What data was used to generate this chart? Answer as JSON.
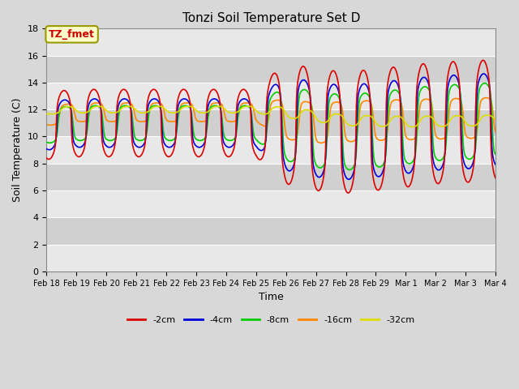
{
  "title": "Tonzi Soil Temperature Set D",
  "xlabel": "Time",
  "ylabel": "Soil Temperature (C)",
  "ylim": [
    0,
    18
  ],
  "yticks": [
    0,
    2,
    4,
    6,
    8,
    10,
    12,
    14,
    16,
    18
  ],
  "annotation_text": "TZ_fmet",
  "annotation_color": "#cc0000",
  "annotation_bg": "#ffffcc",
  "annotation_border": "#999900",
  "series_colors": {
    "-2cm": "#dd0000",
    "-4cm": "#0000dd",
    "-8cm": "#00cc00",
    "-16cm": "#ff8800",
    "-32cm": "#dddd00"
  },
  "series_linewidth": 1.2,
  "bg_color": "#d8d8d8",
  "plot_bg_light": "#e8e8e8",
  "plot_bg_dark": "#d0d0d0",
  "grid_color": "#ffffff",
  "tick_labels": [
    "Feb 18",
    "Feb 19",
    "Feb 20",
    "Feb 21",
    "Feb 22",
    "Feb 23",
    "Feb 24",
    "Feb 25",
    "Feb 26",
    "Feb 27",
    "Feb 28",
    "Feb 29",
    "Mar 1",
    "Mar 2",
    "Mar 3",
    "Mar 4"
  ],
  "figsize": [
    6.4,
    4.8
  ],
  "dpi": 100
}
